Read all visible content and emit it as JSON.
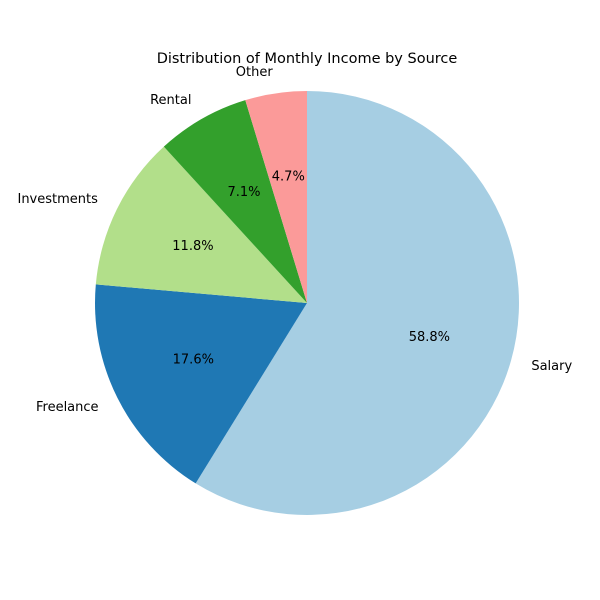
{
  "chart_data": {
    "type": "pie",
    "title": "Distribution of Monthly Income by Source",
    "start_angle_deg": 90,
    "direction": "clockwise",
    "slices": [
      {
        "label": "Salary",
        "value": 58.8,
        "pct_label": "58.8%",
        "color": "#a6cee3"
      },
      {
        "label": "Freelance",
        "value": 17.6,
        "pct_label": "17.6%",
        "color": "#1f78b4"
      },
      {
        "label": "Investments",
        "value": 11.8,
        "pct_label": "11.8%",
        "color": "#b2df8a"
      },
      {
        "label": "Rental",
        "value": 7.1,
        "pct_label": "7.1%",
        "color": "#33a02c"
      },
      {
        "label": "Other",
        "value": 4.7,
        "pct_label": "4.7%",
        "color": "#fb9a99"
      }
    ]
  }
}
